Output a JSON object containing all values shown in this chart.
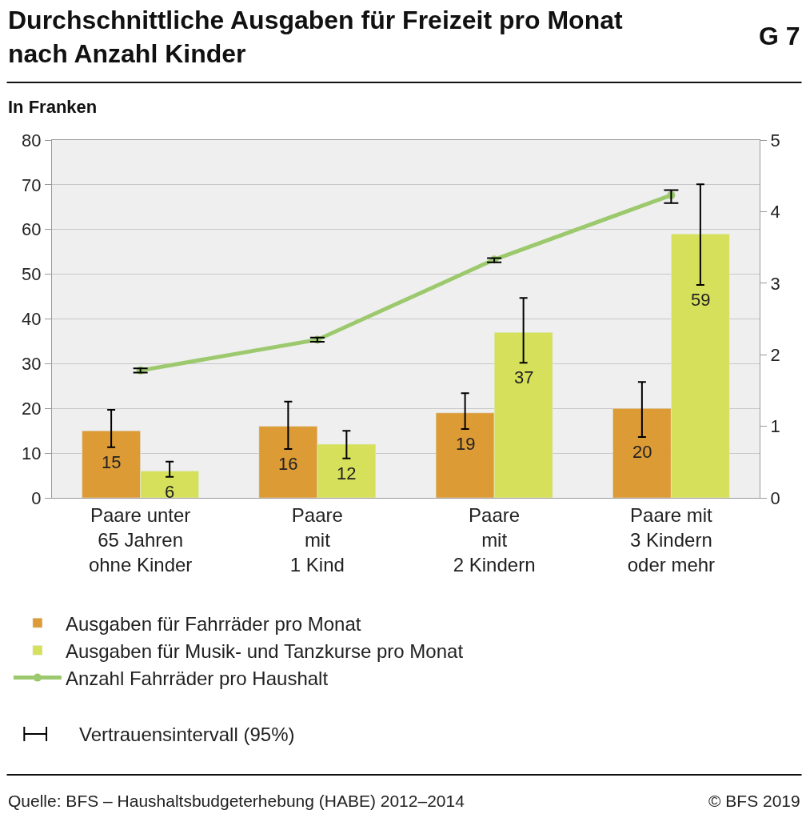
{
  "chart_data": {
    "type": "bar",
    "title": "Durchschnittliche Ausgaben für Freizeit pro Monat\nnach Anzahl Kinder",
    "subtitle": "In Franken",
    "categories": [
      "Paare unter\n65 Jahren\nohne Kinder",
      "Paare\nmit\n1 Kind",
      "Paare\nmit\n2 Kindern",
      "Paare mit\n3 Kindern\noder mehr"
    ],
    "series": [
      {
        "name": "Ausgaben für Fahrräder pro Monat",
        "color": "#dc9b35",
        "values": [
          15,
          16,
          19,
          20
        ],
        "value_labels": [
          "15",
          "16",
          "19",
          "20"
        ],
        "errors": [
          [
            11.3,
            19.7
          ],
          [
            10.9,
            21.5
          ],
          [
            15.4,
            23.4
          ],
          [
            13.6,
            25.9
          ]
        ]
      },
      {
        "name": "Ausgaben für Musik- und Tanzkurse pro Monat",
        "color": "#d6e05a",
        "values": [
          6,
          12,
          37,
          59
        ],
        "value_labels": [
          "6",
          "12",
          "37",
          "59"
        ],
        "errors": [
          [
            4.7,
            8.1
          ],
          [
            8.8,
            15.0
          ],
          [
            30.2,
            44.7
          ],
          [
            47.6,
            70.1
          ]
        ]
      },
      {
        "name": "Anzahl Fahrräder pro Haushalt",
        "type": "line",
        "axis": "y2",
        "color": "#9dc96e",
        "marker": "circle",
        "values": [
          1.78,
          2.21,
          3.33,
          4.23
        ],
        "errors": [
          [
            1.75,
            1.81
          ],
          [
            2.18,
            2.24
          ],
          [
            3.29,
            3.35
          ],
          [
            4.12,
            4.3
          ]
        ]
      }
    ],
    "ylim": [
      0,
      80
    ],
    "yticks": [
      0,
      10,
      20,
      30,
      40,
      50,
      60,
      70,
      80
    ],
    "y2lim": [
      0,
      5
    ],
    "y2ticks": [
      0,
      1,
      2,
      3,
      4,
      5
    ],
    "grid": "y",
    "legend": "bottom",
    "annotations": [
      "G 7",
      "Vertrauensintervall (95%)",
      "Quelle: BFS – Haushaltsbudgeterhebung (HABE) 2012–2014",
      "© BFS 2019"
    ]
  }
}
